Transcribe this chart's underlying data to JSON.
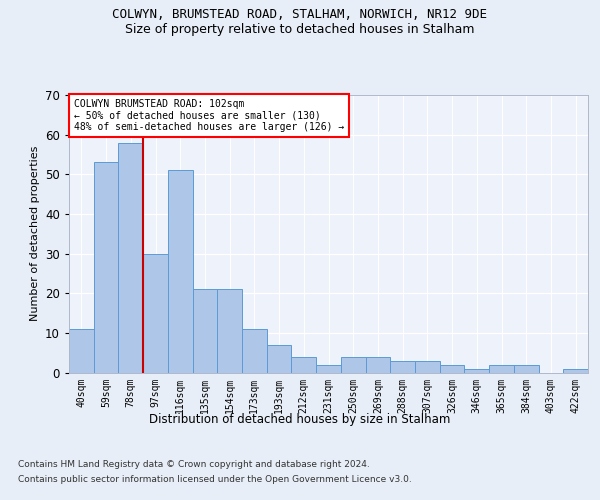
{
  "title1": "COLWYN, BRUMSTEAD ROAD, STALHAM, NORWICH, NR12 9DE",
  "title2": "Size of property relative to detached houses in Stalham",
  "xlabel": "Distribution of detached houses by size in Stalham",
  "ylabel": "Number of detached properties",
  "categories": [
    "40sqm",
    "59sqm",
    "78sqm",
    "97sqm",
    "116sqm",
    "135sqm",
    "154sqm",
    "173sqm",
    "193sqm",
    "212sqm",
    "231sqm",
    "250sqm",
    "269sqm",
    "288sqm",
    "307sqm",
    "326sqm",
    "346sqm",
    "365sqm",
    "384sqm",
    "403sqm",
    "422sqm"
  ],
  "values": [
    11,
    53,
    58,
    30,
    51,
    21,
    21,
    11,
    7,
    4,
    2,
    4,
    4,
    3,
    3,
    2,
    1,
    2,
    2,
    0,
    1
  ],
  "bar_color": "#aec6e8",
  "bar_edge_color": "#5b9bd5",
  "vline_x": 2.5,
  "vline_color": "#cc0000",
  "annotation_title": "COLWYN BRUMSTEAD ROAD: 102sqm",
  "annotation_line1": "← 50% of detached houses are smaller (130)",
  "annotation_line2": "48% of semi-detached houses are larger (126) →",
  "ylim": [
    0,
    70
  ],
  "yticks": [
    0,
    10,
    20,
    30,
    40,
    50,
    60,
    70
  ],
  "footnote1": "Contains HM Land Registry data © Crown copyright and database right 2024.",
  "footnote2": "Contains public sector information licensed under the Open Government Licence v3.0.",
  "bg_color": "#e8eef7",
  "plot_bg_color": "#eef2fb",
  "title1_fontsize": 9,
  "title2_fontsize": 9,
  "ylabel_fontsize": 8,
  "xlabel_fontsize": 8.5,
  "tick_fontsize": 7,
  "annot_fontsize": 7,
  "footnote_fontsize": 6.5
}
